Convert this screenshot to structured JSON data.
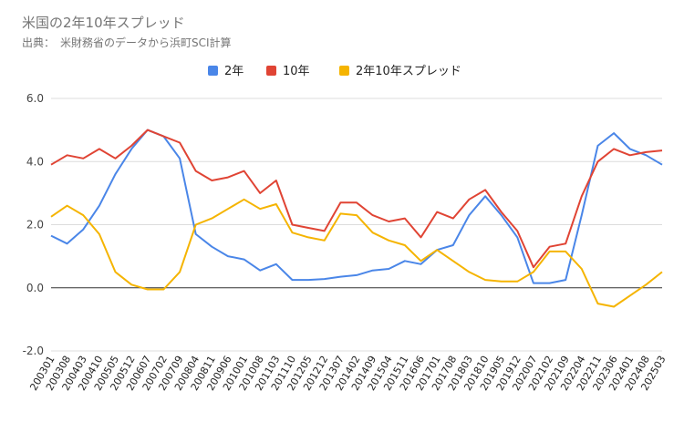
{
  "title": "米国の2年10年スプレッド",
  "subtitle": "出典：　米財務省のデータから浜町SCI計算",
  "chart_data": {
    "type": "line",
    "title": "米国の2年10年スプレッド",
    "ylim": [
      -2,
      6
    ],
    "yticks": [
      -2,
      0,
      2,
      4,
      6
    ],
    "ytick_labels": [
      "-2.0",
      "0.0",
      "2.0",
      "4.0",
      "6.0"
    ],
    "grid": true,
    "legend_position": "top",
    "x": [
      "200301",
      "200308",
      "200403",
      "200410",
      "200505",
      "200512",
      "200607",
      "200702",
      "200709",
      "200804",
      "200811",
      "200906",
      "201001",
      "201008",
      "201103",
      "201110",
      "201205",
      "201212",
      "201307",
      "201402",
      "201409",
      "201504",
      "201511",
      "201606",
      "201701",
      "201708",
      "201803",
      "201810",
      "201905",
      "201912",
      "202007",
      "202102",
      "202109",
      "202204",
      "202211",
      "202306",
      "202401",
      "202408",
      "202503"
    ],
    "series": [
      {
        "name": "2年",
        "color": "#4a86e8",
        "values": [
          1.65,
          1.4,
          1.85,
          2.6,
          3.6,
          4.4,
          5.0,
          4.8,
          4.1,
          1.7,
          1.3,
          1.0,
          0.9,
          0.55,
          0.75,
          0.25,
          0.25,
          0.28,
          0.35,
          0.4,
          0.55,
          0.6,
          0.85,
          0.75,
          1.2,
          1.35,
          2.3,
          2.9,
          2.3,
          1.6,
          0.15,
          0.15,
          0.25,
          2.3,
          4.5,
          4.9,
          4.4,
          4.2,
          3.9
        ]
      },
      {
        "name": "10年",
        "color": "#e04434",
        "values": [
          3.9,
          4.2,
          4.1,
          4.4,
          4.1,
          4.5,
          5.0,
          4.8,
          4.6,
          3.7,
          3.4,
          3.5,
          3.7,
          3.0,
          3.4,
          2.0,
          1.9,
          1.8,
          2.7,
          2.7,
          2.3,
          2.1,
          2.2,
          1.6,
          2.4,
          2.2,
          2.8,
          3.1,
          2.4,
          1.8,
          0.65,
          1.3,
          1.4,
          2.9,
          4.0,
          4.4,
          4.2,
          4.3,
          4.35
        ]
      },
      {
        "name": "2年10年スプレッド",
        "color": "#f5b400",
        "values": [
          2.25,
          2.6,
          2.3,
          1.7,
          0.5,
          0.1,
          -0.05,
          -0.05,
          0.5,
          2.0,
          2.2,
          2.5,
          2.8,
          2.5,
          2.65,
          1.75,
          1.6,
          1.5,
          2.35,
          2.3,
          1.75,
          1.5,
          1.35,
          0.85,
          1.2,
          0.85,
          0.5,
          0.25,
          0.2,
          0.2,
          0.5,
          1.15,
          1.15,
          0.6,
          -0.5,
          -0.6,
          -0.25,
          0.1,
          0.5
        ]
      }
    ]
  }
}
